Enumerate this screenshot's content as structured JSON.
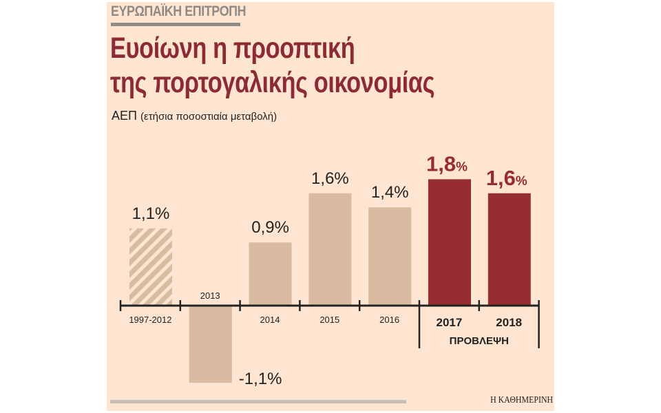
{
  "header": {
    "kicker": "ΕΥΡΩΠΑΪΚΗ ΕΠΙΤΡΟΠΗ",
    "title_line1": "Ευοίωνη η προοπτική",
    "title_line2": "της πορτογαλικής οικονομίας",
    "subtitle_main": "ΑΕΠ",
    "subtitle_note": "(ετήσια ποσοστιαία μεταβολή)"
  },
  "footer": {
    "credit": "Η ΚΑΘΗΜΕΡΙΝΗ"
  },
  "colors": {
    "background": "#fde5d1",
    "actual": "#d8bba0",
    "forecast": "#962d34",
    "title": "#8c2b31"
  },
  "chart_data": {
    "type": "bar",
    "categories": [
      "1997-2012",
      "2013",
      "2014",
      "2015",
      "2016",
      "2017",
      "2018"
    ],
    "values": [
      1.1,
      -1.1,
      0.9,
      1.6,
      1.4,
      1.8,
      1.6
    ],
    "labels": [
      "1,1%",
      "-1,1%",
      "0,9%",
      "1,6%",
      "1,4%",
      "1,8",
      "1,6"
    ],
    "forecast": [
      false,
      false,
      false,
      false,
      false,
      true,
      true
    ],
    "hatched": [
      true,
      false,
      false,
      false,
      false,
      false,
      false
    ],
    "forecast_label": "ΠΡΟΒΛΕΨΗ",
    "percent_sign": "%",
    "ylim": [
      -1.1,
      1.8
    ],
    "grid": false
  }
}
